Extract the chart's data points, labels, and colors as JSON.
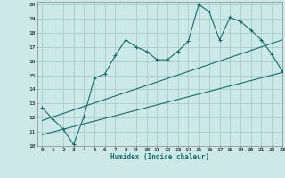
{
  "xlabel": "Humidex (Indice chaleur)",
  "xlim": [
    -0.5,
    23
  ],
  "ylim": [
    10,
    20.2
  ],
  "yticks": [
    10,
    11,
    12,
    13,
    14,
    15,
    16,
    17,
    18,
    19,
    20
  ],
  "xticks": [
    0,
    1,
    2,
    3,
    4,
    5,
    6,
    7,
    8,
    9,
    10,
    11,
    12,
    13,
    14,
    15,
    16,
    17,
    18,
    19,
    20,
    21,
    22,
    23
  ],
  "background_color": "#cce8e8",
  "grid_color": "#aacccc",
  "line_color": "#1a6b6b",
  "line1_x": [
    0,
    1,
    2,
    3,
    4,
    5,
    6,
    7,
    8,
    9,
    10,
    11,
    12,
    13,
    14,
    15,
    16,
    17,
    18,
    19,
    20,
    21,
    22,
    23
  ],
  "line1_y": [
    12.7,
    11.9,
    11.2,
    10.1,
    12.1,
    14.8,
    15.1,
    16.4,
    17.5,
    17.0,
    16.7,
    16.1,
    16.1,
    16.7,
    17.4,
    20.0,
    19.5,
    17.5,
    19.1,
    18.8,
    18.2,
    17.5,
    16.5,
    15.3
  ],
  "line2_x": [
    0,
    23
  ],
  "line2_y": [
    11.8,
    17.5
  ],
  "line3_x": [
    0,
    23
  ],
  "line3_y": [
    10.8,
    15.2
  ]
}
